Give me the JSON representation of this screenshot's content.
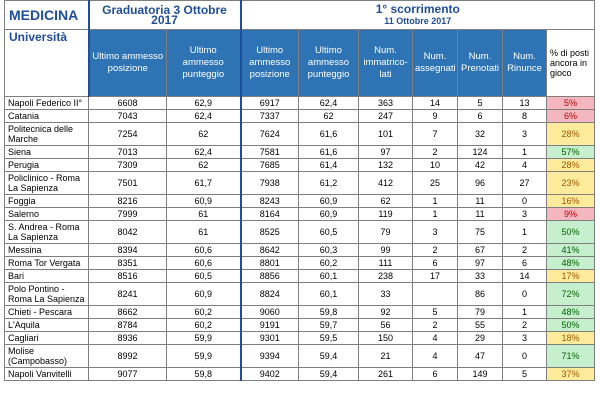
{
  "header": {
    "medicina": "MEDICINA",
    "graduatoria": "Graduatoria 3 Ottobre 2017",
    "scorrimento_title": "1° scorrimento",
    "scorrimento_date": "11 Ottobre 2017"
  },
  "columns": {
    "universita": "Università",
    "ultimo_posizione": "Ultimo ammesso posizione",
    "ultimo_punteggio": "Ultimo ammesso punteggio",
    "ultimo_posizione2": "Ultimo ammesso posizione",
    "ultimo_punteggio2": "Ultimo ammesso punteggio",
    "num_immatricolati": "Num. immatrico-lati",
    "num_assegnati": "Num. assegnati",
    "num_prenotati": "Num. Prenotati",
    "num_rinunce": "Num. Rinunce",
    "pct_posti": "% di posti ancora in gioco"
  },
  "colors": {
    "header_blue": "#2e74b5",
    "title_blue": "#1f4e9a",
    "red_bg": "#f4b6bf",
    "yellow_bg": "#ffeb9c",
    "green_bg": "#c6efce"
  },
  "rows": [
    {
      "uni": "Napoli Federico II°",
      "pos1": "6608",
      "pt1": "62,9",
      "pos2": "6917",
      "pt2": "62,4",
      "imm": "363",
      "ass": "14",
      "pre": "5",
      "rin": "13",
      "pct": "5%",
      "color": "red",
      "tall": false
    },
    {
      "uni": "Catania",
      "pos1": "7043",
      "pt1": "62,4",
      "pos2": "7337",
      "pt2": "62",
      "imm": "247",
      "ass": "9",
      "pre": "6",
      "rin": "8",
      "pct": "6%",
      "color": "red",
      "tall": false
    },
    {
      "uni": "Politecnica delle Marche",
      "pos1": "7254",
      "pt1": "62",
      "pos2": "7624",
      "pt2": "61,6",
      "imm": "101",
      "ass": "7",
      "pre": "32",
      "rin": "3",
      "pct": "28%",
      "color": "yellow",
      "tall": true
    },
    {
      "uni": "Siena",
      "pos1": "7013",
      "pt1": "62,4",
      "pos2": "7581",
      "pt2": "61,6",
      "imm": "97",
      "ass": "2",
      "pre": "124",
      "rin": "1",
      "pct": "57%",
      "color": "green",
      "tall": false
    },
    {
      "uni": "Perugia",
      "pos1": "7309",
      "pt1": "62",
      "pos2": "7685",
      "pt2": "61,4",
      "imm": "132",
      "ass": "10",
      "pre": "42",
      "rin": "4",
      "pct": "28%",
      "color": "yellow",
      "tall": false
    },
    {
      "uni": "Policlinico - Roma La Sapienza",
      "pos1": "7501",
      "pt1": "61,7",
      "pos2": "7938",
      "pt2": "61,2",
      "imm": "412",
      "ass": "25",
      "pre": "96",
      "rin": "27",
      "pct": "23%",
      "color": "yellow",
      "tall": true
    },
    {
      "uni": "Foggia",
      "pos1": "8216",
      "pt1": "60,9",
      "pos2": "8243",
      "pt2": "60,9",
      "imm": "62",
      "ass": "1",
      "pre": "11",
      "rin": "0",
      "pct": "16%",
      "color": "yellow",
      "tall": false
    },
    {
      "uni": "Salerno",
      "pos1": "7999",
      "pt1": "61",
      "pos2": "8164",
      "pt2": "60,9",
      "imm": "119",
      "ass": "1",
      "pre": "11",
      "rin": "3",
      "pct": "9%",
      "color": "red",
      "tall": false
    },
    {
      "uni": "S. Andrea - Roma La Sapienza",
      "pos1": "8042",
      "pt1": "61",
      "pos2": "8525",
      "pt2": "60,5",
      "imm": "79",
      "ass": "3",
      "pre": "75",
      "rin": "1",
      "pct": "50%",
      "color": "green",
      "tall": true
    },
    {
      "uni": "Messina",
      "pos1": "8394",
      "pt1": "60,6",
      "pos2": "8642",
      "pt2": "60,3",
      "imm": "99",
      "ass": "2",
      "pre": "67",
      "rin": "2",
      "pct": "41%",
      "color": "green",
      "tall": false
    },
    {
      "uni": "Roma Tor Vergata",
      "pos1": "8351",
      "pt1": "60,6",
      "pos2": "8801",
      "pt2": "60,2",
      "imm": "111",
      "ass": "6",
      "pre": "97",
      "rin": "6",
      "pct": "48%",
      "color": "green",
      "tall": false
    },
    {
      "uni": "Bari",
      "pos1": "8516",
      "pt1": "60,5",
      "pos2": "8856",
      "pt2": "60,1",
      "imm": "238",
      "ass": "17",
      "pre": "33",
      "rin": "14",
      "pct": "17%",
      "color": "yellow",
      "tall": false
    },
    {
      "uni": "Polo Pontino - Roma La Sapienza",
      "pos1": "8241",
      "pt1": "60,9",
      "pos2": "8824",
      "pt2": "60,1",
      "imm": "33",
      "ass": "",
      "pre": "86",
      "rin": "0",
      "pct": "72%",
      "color": "green",
      "tall": true
    },
    {
      "uni": "Chieti - Pescara",
      "pos1": "8662",
      "pt1": "60,2",
      "pos2": "9060",
      "pt2": "59,8",
      "imm": "92",
      "ass": "5",
      "pre": "79",
      "rin": "1",
      "pct": "48%",
      "color": "green",
      "tall": false
    },
    {
      "uni": "L'Aquila",
      "pos1": "8784",
      "pt1": "60,2",
      "pos2": "9191",
      "pt2": "59,7",
      "imm": "56",
      "ass": "2",
      "pre": "55",
      "rin": "2",
      "pct": "50%",
      "color": "green",
      "tall": false
    },
    {
      "uni": "Cagliari",
      "pos1": "8936",
      "pt1": "59,9",
      "pos2": "9301",
      "pt2": "59,5",
      "imm": "150",
      "ass": "4",
      "pre": "29",
      "rin": "3",
      "pct": "18%",
      "color": "yellow",
      "tall": false
    },
    {
      "uni": "Molise (Campobasso)",
      "pos1": "8992",
      "pt1": "59,9",
      "pos2": "9394",
      "pt2": "59,4",
      "imm": "21",
      "ass": "4",
      "pre": "47",
      "rin": "0",
      "pct": "71%",
      "color": "green",
      "tall": true
    },
    {
      "uni": "Napoli Vanvitelli",
      "pos1": "9077",
      "pt1": "59,8",
      "pos2": "9402",
      "pt2": "59,4",
      "imm": "261",
      "ass": "6",
      "pre": "149",
      "rin": "5",
      "pct": "37%",
      "color": "yellow",
      "tall": false
    }
  ]
}
